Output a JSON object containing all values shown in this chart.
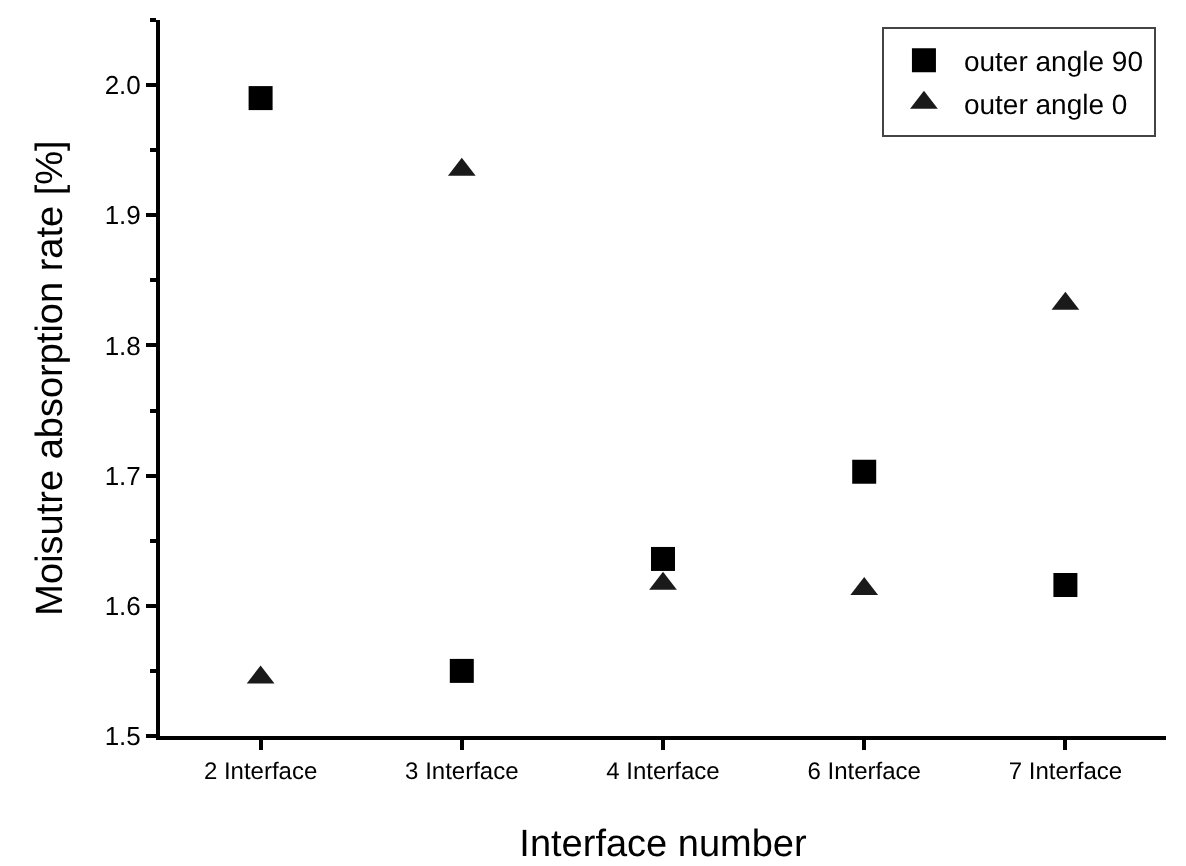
{
  "chart_data": {
    "type": "scatter",
    "xlabel": "Interface number",
    "ylabel": "Moisutre absorption rate [%]",
    "categories": [
      "2 Interface",
      "3 Interface",
      "4 Interface",
      "6 Interface",
      "7 Interface"
    ],
    "series": [
      {
        "name": "outer angle 90",
        "color": "#000000",
        "marker": "square",
        "values": [
          1.99,
          1.55,
          1.636,
          1.703,
          1.616
        ]
      },
      {
        "name": "outer angle 0",
        "color": "#1a1a1a",
        "marker": "triangle",
        "values": [
          1.545,
          1.935,
          1.617,
          1.613,
          1.832
        ]
      }
    ],
    "ylim": [
      1.5,
      2.05
    ],
    "yticks": [
      1.5,
      1.6,
      1.7,
      1.8,
      1.9,
      {
        "value": 2,
        "label": "2.0"
      }
    ],
    "grid": false,
    "legend": "top right"
  }
}
